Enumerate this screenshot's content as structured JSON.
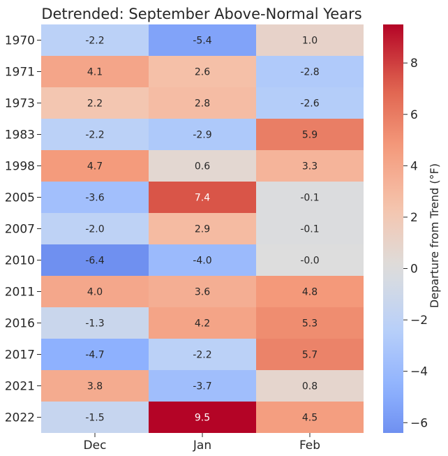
{
  "chart_data": {
    "type": "heatmap",
    "title": "Detrended: September Above-Normal Years",
    "columns": [
      "Dec",
      "Jan",
      "Feb"
    ],
    "rows": [
      "1970",
      "1971",
      "1973",
      "1983",
      "1998",
      "2005",
      "2007",
      "2010",
      "2011",
      "2016",
      "2017",
      "2021",
      "2022"
    ],
    "values": [
      [
        -2.2,
        -5.4,
        1.0
      ],
      [
        4.1,
        2.6,
        -2.8
      ],
      [
        2.2,
        2.8,
        -2.6
      ],
      [
        -2.2,
        -2.9,
        5.9
      ],
      [
        4.7,
        0.6,
        3.3
      ],
      [
        -3.6,
        7.4,
        -0.1
      ],
      [
        -2.0,
        2.9,
        -0.1
      ],
      [
        -6.4,
        -4.0,
        -0.0
      ],
      [
        4.0,
        3.6,
        4.8
      ],
      [
        -1.3,
        4.2,
        5.3
      ],
      [
        -4.7,
        -2.2,
        5.7
      ],
      [
        3.8,
        -3.7,
        0.8
      ],
      [
        -1.5,
        9.5,
        4.5
      ]
    ],
    "labels": [
      [
        "-2.2",
        "-5.4",
        "1.0"
      ],
      [
        "4.1",
        "2.6",
        "-2.8"
      ],
      [
        "2.2",
        "2.8",
        "-2.6"
      ],
      [
        "-2.2",
        "-2.9",
        "5.9"
      ],
      [
        "4.7",
        "0.6",
        "3.3"
      ],
      [
        "-3.6",
        "7.4",
        "-0.1"
      ],
      [
        "-2.0",
        "2.9",
        "-0.1"
      ],
      [
        "-6.4",
        "-4.0",
        "-0.0"
      ],
      [
        "4.0",
        "3.6",
        "4.8"
      ],
      [
        "-1.3",
        "4.2",
        "5.3"
      ],
      [
        "-4.7",
        "-2.2",
        "5.7"
      ],
      [
        "3.8",
        "-3.7",
        "0.8"
      ],
      [
        "-1.5",
        "9.5",
        "4.5"
      ]
    ],
    "colormap": "coolwarm",
    "vmin": -6.4,
    "vmax": 9.5,
    "center": 0,
    "colorbar_label": "Departure from Trend (°F)",
    "colorbar_ticks": [
      -6,
      -4,
      -2,
      0,
      2,
      4,
      6,
      8
    ],
    "colorbar_tick_labels": [
      "−6",
      "−4",
      "−2",
      "0",
      "2",
      "4",
      "6",
      "8"
    ]
  }
}
